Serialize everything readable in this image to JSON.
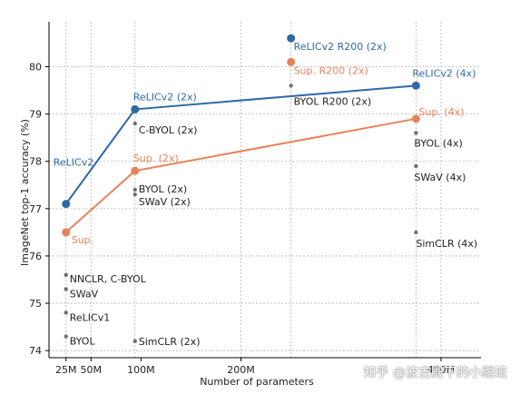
{
  "chart_data": {
    "type": "scatter",
    "title": "",
    "xlabel": "Number of parameters",
    "ylabel": "ImageNet top-1 accuracy (%)",
    "xlim": [
      8,
      440
    ],
    "ylim": [
      73.85,
      80.95
    ],
    "x_ticks": [
      {
        "value": 25,
        "label": "25M"
      },
      {
        "value": 50,
        "label": "50M"
      },
      {
        "value": 100,
        "label": "100M"
      },
      {
        "value": 200,
        "label": "200M"
      },
      {
        "value": 400,
        "label": "400M"
      }
    ],
    "y_ticks": [
      74,
      75,
      76,
      77,
      78,
      79,
      80
    ],
    "x_gridlines": [
      25,
      50,
      94,
      200,
      250,
      375,
      400
    ],
    "y_gridlines": [
      74,
      75,
      76,
      77,
      78,
      79,
      80
    ],
    "grid": true,
    "series": [
      {
        "name": "ReLICv2",
        "color": "#2e6aa8",
        "points": [
          {
            "x": 25,
            "y": 77.1,
            "label": "ReLICv2"
          },
          {
            "x": 94,
            "y": 79.1,
            "label": "ReLICv2 (2x)"
          },
          {
            "x": 250,
            "y": 80.6,
            "label": "ReLICv2 R200 (2x)"
          },
          {
            "x": 375,
            "y": 79.6,
            "label": "ReLICv2 (4x)"
          }
        ],
        "line_points": [
          0,
          1,
          3
        ]
      },
      {
        "name": "Sup.",
        "color": "#e8825a",
        "points": [
          {
            "x": 25,
            "y": 76.5,
            "label": "Sup."
          },
          {
            "x": 94,
            "y": 77.8,
            "label": "Sup. (2x)"
          },
          {
            "x": 250,
            "y": 80.1,
            "label": "Sup. R200 (2x)"
          },
          {
            "x": 375,
            "y": 78.9,
            "label": "Sup. (4x)"
          }
        ],
        "line_points": [
          0,
          1,
          3
        ]
      }
    ],
    "baselines": {
      "color": "#707070",
      "text_color": "#222222",
      "points": [
        {
          "x": 25,
          "y": 75.6,
          "label": "NNCLR,  C-BYOL"
        },
        {
          "x": 25,
          "y": 75.3,
          "label": "SWaV"
        },
        {
          "x": 25,
          "y": 74.8,
          "label": "ReLICv1"
        },
        {
          "x": 25,
          "y": 74.3,
          "label": "BYOL"
        },
        {
          "x": 94,
          "y": 78.8,
          "label": "C-BYOL (2x)"
        },
        {
          "x": 94,
          "y": 77.4,
          "label": "BYOL (2x)"
        },
        {
          "x": 94,
          "y": 77.3,
          "label": "SWaV (2x)"
        },
        {
          "x": 94,
          "y": 74.2,
          "label": "SimCLR (2x)"
        },
        {
          "x": 250,
          "y": 79.6,
          "label": "BYOL R200 (2x)"
        },
        {
          "x": 375,
          "y": 78.6,
          "label": "BYOL (4x)"
        },
        {
          "x": 375,
          "y": 77.9,
          "label": "SWaV (4x)"
        },
        {
          "x": 375,
          "y": 76.5,
          "label": "SimCLR (4x)"
        }
      ]
    }
  },
  "watermark": "知乎 @波吉殿下的小跟班"
}
